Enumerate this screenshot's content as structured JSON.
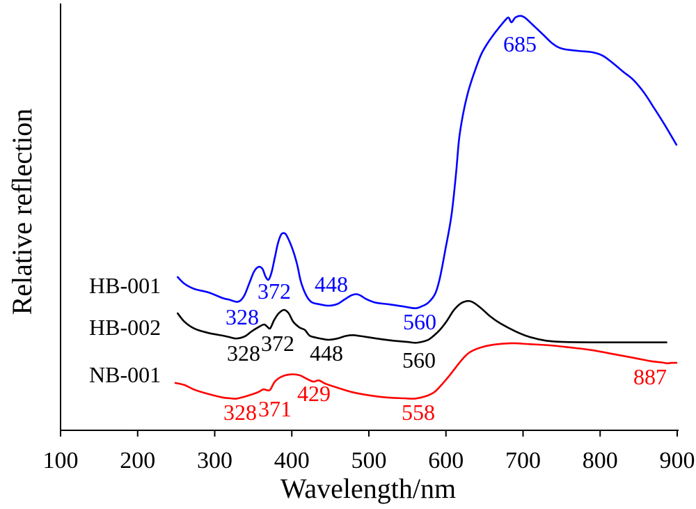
{
  "chart_data": {
    "type": "line",
    "xlabel": "Wavelength/nm",
    "ylabel": "Relative reflection",
    "xlim": [
      100,
      900
    ],
    "ylim": [
      0,
      100
    ],
    "xticks": [
      100,
      200,
      300,
      400,
      500,
      600,
      700,
      800,
      900
    ],
    "grid": false,
    "legend": "inline-left",
    "series": [
      {
        "name": "HB-001",
        "color": "#0000ff",
        "x": [
          252,
          261,
          274,
          292,
          310,
          319,
          324,
          329,
          334,
          339,
          345,
          351,
          357,
          362,
          366,
          370,
          374,
          378,
          382,
          386,
          390,
          394,
          401,
          407,
          412,
          419,
          426,
          437,
          448,
          459,
          468,
          477,
          484,
          490,
          496,
          509,
          527,
          545,
          560,
          568,
          577,
          586,
          592,
          599,
          607,
          613,
          617,
          622,
          628,
          635,
          645,
          654,
          663,
          670,
          676,
          681,
          685,
          690,
          697,
          703,
          712,
          726,
          739,
          751,
          771,
          789,
          803,
          816,
          830,
          843,
          857,
          870,
          884,
          899
        ],
        "y": [
          35.9,
          34.3,
          33.1,
          32.3,
          31.0,
          30.6,
          30.3,
          30.1,
          30.5,
          31.8,
          34.5,
          37.2,
          38.3,
          37.8,
          36.0,
          35.3,
          37.2,
          40.5,
          43.8,
          45.8,
          46.2,
          45.4,
          42.4,
          38.8,
          34.7,
          31.5,
          30.0,
          29.5,
          29.2,
          29.6,
          30.6,
          31.6,
          31.9,
          31.5,
          30.8,
          29.9,
          29.5,
          29.0,
          28.6,
          29.0,
          29.9,
          32.0,
          35.6,
          42.1,
          50.2,
          60.0,
          68.2,
          73.9,
          78.8,
          82.9,
          87.8,
          90.7,
          93.0,
          94.6,
          95.9,
          96.7,
          95.6,
          96.7,
          97.1,
          96.6,
          95.1,
          92.7,
          90.5,
          89.4,
          88.9,
          88.6,
          87.8,
          86.1,
          84.0,
          82.1,
          79.1,
          75.5,
          71.5,
          66.9
        ],
        "annotations": [
          328,
          372,
          448,
          560,
          685
        ]
      },
      {
        "name": "HB-002",
        "color": "#000000",
        "x": [
          252,
          261,
          274,
          292,
          310,
          320,
          328,
          339,
          348,
          357,
          364,
          368,
          372,
          377,
          383,
          390,
          396,
          402,
          410,
          417,
          423,
          432,
          440,
          448,
          459,
          470,
          479,
          488,
          496,
          514,
          532,
          550,
          560,
          568,
          577,
          585,
          592,
          601,
          610,
          619,
          628,
          635,
          645,
          658,
          671,
          690,
          708,
          730,
          753,
          789,
          834,
          886
        ],
        "y": [
          27.4,
          25.4,
          23.8,
          22.8,
          22.2,
          21.8,
          21.5,
          22.0,
          23.2,
          24.2,
          24.8,
          24.3,
          23.9,
          25.8,
          27.4,
          28.2,
          27.4,
          25.4,
          24.1,
          23.5,
          22.2,
          21.7,
          21.4,
          21.2,
          21.5,
          22.1,
          22.3,
          22.1,
          21.9,
          21.4,
          21.0,
          20.7,
          20.5,
          20.7,
          21.2,
          22.3,
          23.5,
          25.6,
          28.1,
          29.7,
          30.3,
          30.0,
          28.7,
          26.6,
          25.0,
          23.2,
          21.9,
          21.0,
          20.7,
          20.6,
          20.6,
          20.6
        ],
        "annotations": [
          328,
          372,
          448,
          560
        ]
      },
      {
        "name": "NB-001",
        "color": "#ff0000",
        "x": [
          249,
          261,
          274,
          292,
          310,
          320,
          328,
          337,
          348,
          357,
          363,
          368,
          372,
          378,
          387,
          399,
          410,
          419,
          428,
          435,
          444,
          459,
          477,
          500,
          523,
          545,
          558,
          568,
          577,
          586,
          595,
          604,
          613,
          622,
          631,
          645,
          663,
          685,
          708,
          735,
          762,
          789,
          816,
          843,
          866,
          880,
          887,
          893,
          899
        ],
        "y": [
          11.1,
          10.6,
          9.5,
          8.5,
          7.7,
          7.5,
          7.4,
          7.8,
          8.4,
          9.0,
          9.6,
          9.4,
          9.5,
          11.4,
          12.6,
          13.1,
          12.9,
          12.1,
          11.4,
          11.7,
          10.9,
          10.0,
          9.0,
          8.2,
          7.7,
          7.5,
          7.4,
          7.7,
          8.2,
          9.1,
          10.8,
          12.7,
          14.8,
          16.8,
          18.3,
          19.4,
          20.1,
          20.4,
          20.2,
          19.9,
          19.4,
          18.8,
          17.9,
          17.0,
          16.2,
          15.9,
          15.7,
          15.8,
          15.8
        ],
        "annotations": [
          328,
          371,
          429,
          558,
          887
        ]
      }
    ]
  }
}
